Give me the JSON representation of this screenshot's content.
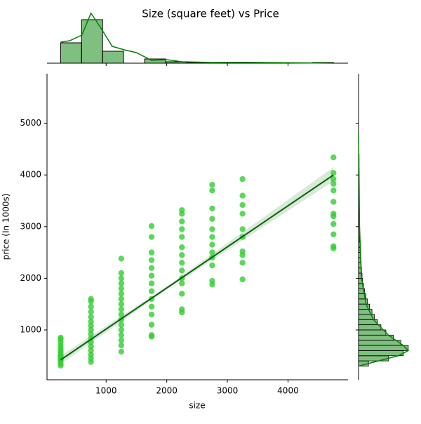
{
  "chart_data": {
    "type": "jointplot",
    "title": "Size (square feet) vs Price",
    "x_label": "size",
    "y_label": "price (In 1000s)",
    "xlim": [
      25,
      4990
    ],
    "ylim": [
      35,
      5960
    ],
    "xticks": [
      1000,
      2000,
      3000,
      4000
    ],
    "yticks": [
      1000,
      2000,
      3000,
      4000,
      5000
    ],
    "point_color": "#32cd32",
    "line_color": "#006400",
    "hist_color": "#008000",
    "scatter": {
      "x": [
        250,
        250,
        250,
        250,
        250,
        250,
        250,
        250,
        250,
        250,
        250,
        250,
        250,
        250,
        750,
        750,
        750,
        750,
        750,
        750,
        750,
        750,
        750,
        750,
        750,
        750,
        750,
        750,
        750,
        750,
        1250,
        1250,
        1250,
        1250,
        1250,
        1250,
        1250,
        1250,
        1250,
        1250,
        1250,
        1250,
        1250,
        1250,
        1250,
        1250,
        1250,
        1750,
        1750,
        1750,
        1750,
        1750,
        1750,
        1750,
        1750,
        1750,
        1750,
        1750,
        1750,
        1750,
        1750,
        2250,
        2250,
        2250,
        2250,
        2250,
        2250,
        2250,
        2250,
        2250,
        2250,
        2250,
        2250,
        2250,
        2250,
        2750,
        2750,
        2750,
        2750,
        2750,
        2750,
        2750,
        2750,
        2750,
        2750,
        2750,
        2750,
        3250,
        3250,
        3250,
        3250,
        3250,
        3250,
        3250,
        3250,
        3250,
        3250,
        4750,
        4750,
        4750,
        4750,
        4750,
        4750,
        4750,
        4750,
        4750,
        4750,
        4750,
        4750
      ],
      "y": [
        310,
        350,
        400,
        430,
        460,
        490,
        520,
        560,
        600,
        650,
        700,
        760,
        820,
        850,
        380,
        450,
        520,
        600,
        680,
        760,
        840,
        920,
        1000,
        1080,
        1160,
        1250,
        1350,
        1450,
        1550,
        1600,
        580,
        700,
        800,
        900,
        1000,
        1100,
        1200,
        1300,
        1400,
        1500,
        1600,
        1700,
        1800,
        1900,
        2000,
        2100,
        2380,
        870,
        900,
        1100,
        1300,
        1450,
        1600,
        1750,
        1900,
        2050,
        2200,
        2350,
        2500,
        2800,
        3010,
        1340,
        1400,
        1700,
        1900,
        2000,
        2150,
        2300,
        2450,
        2600,
        2800,
        2950,
        3100,
        3250,
        3320,
        1880,
        1950,
        2250,
        2400,
        2500,
        2650,
        2800,
        2950,
        3150,
        3350,
        3700,
        3810,
        1980,
        2300,
        2450,
        2520,
        2800,
        2950,
        3250,
        3420,
        3600,
        3920,
        2580,
        2620,
        2850,
        3050,
        3200,
        3250,
        3480,
        3700,
        3830,
        3920,
        4040,
        4340
      ]
    },
    "regression": {
      "x": [
        250,
        4750
      ],
      "y": [
        420,
        4000
      ]
    },
    "ci_band": {
      "x": [
        250,
        2000,
        4750
      ],
      "lower": [
        340,
        1780,
        3880
      ],
      "upper": [
        500,
        1840,
        4150
      ]
    },
    "top_hist": {
      "ylim": [
        0,
        360
      ],
      "bins": [
        250,
        596,
        942,
        1288,
        1635,
        1981,
        2327,
        2673,
        3019,
        3365,
        3712,
        4058,
        4404,
        4750
      ],
      "counts": [
        145,
        310,
        85,
        0,
        30,
        10,
        4,
        3,
        2,
        0,
        0,
        0,
        5
      ],
      "kde_x": [
        250,
        400,
        600,
        750,
        900,
        1100,
        1300,
        1500,
        1750,
        2000,
        2250,
        2750,
        3250,
        4000,
        4750
      ],
      "kde_y": [
        150,
        160,
        200,
        356,
        260,
        120,
        95,
        75,
        20,
        25,
        10,
        5,
        6,
        3,
        0
      ]
    },
    "right_hist": {
      "xlim": [
        0,
        120
      ],
      "bins": [
        300,
        400,
        500,
        600,
        700,
        800,
        900,
        1000,
        1100,
        1200,
        1300,
        1400,
        1500,
        1600,
        1700,
        1800,
        1900,
        2000,
        2100,
        2200,
        2300,
        2400,
        2500,
        2600,
        2700,
        2800,
        2900,
        3000,
        3100,
        3200,
        3300,
        3400,
        3500,
        3600,
        3700,
        3800,
        3900,
        4000,
        4100,
        4200,
        4300,
        4400
      ],
      "counts": [
        20,
        60,
        90,
        100,
        85,
        70,
        55,
        45,
        38,
        32,
        27,
        22,
        18,
        15,
        12,
        10,
        8,
        7,
        6,
        5,
        4,
        4,
        3,
        3,
        2,
        2,
        2,
        1,
        1,
        1,
        1,
        1,
        1,
        0,
        1,
        0,
        0,
        1,
        0,
        1,
        1
      ],
      "kde_y": [
        300,
        400,
        500,
        600,
        700,
        900,
        1200,
        1500,
        2000,
        3000,
        4000,
        4800
      ],
      "kde_x": [
        0,
        40,
        80,
        100,
        90,
        60,
        30,
        15,
        6,
        2,
        1,
        0
      ]
    }
  }
}
